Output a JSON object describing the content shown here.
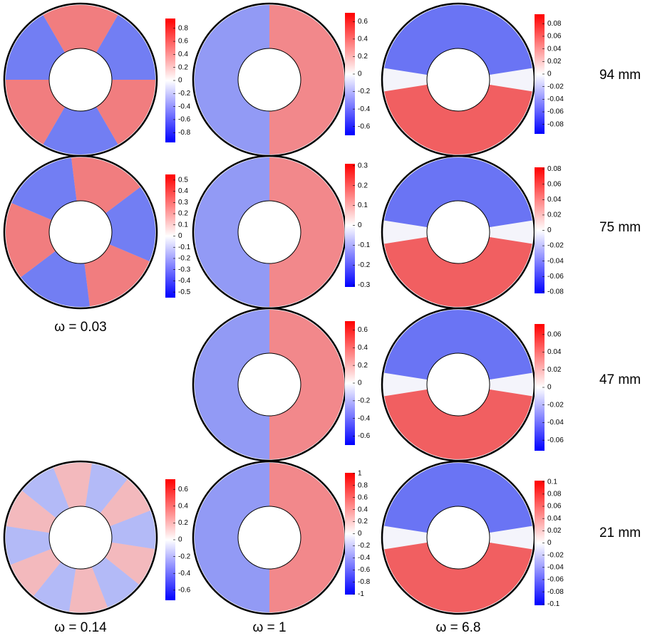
{
  "column_labels": [
    "ω = 0.14",
    "ω = 1",
    "ω = 6.8"
  ],
  "rows": [
    {
      "label": "94 mm",
      "panels": [
        {
          "ylim": [
            -0.95,
            0.95
          ],
          "yticks": [
            0.8,
            0.6,
            0.4,
            0.2,
            0,
            -0.2,
            -0.4,
            -0.6,
            -0.8
          ]
        },
        {
          "ylim": [
            -0.7,
            0.7
          ],
          "yticks": [
            0.6,
            0.4,
            0.2,
            0,
            -0.2,
            -0.4,
            -0.6
          ]
        },
        {
          "ylim": [
            -0.095,
            0.095
          ],
          "yticks": [
            0.08,
            0.06,
            0.04,
            0.02,
            0,
            -0.02,
            -0.04,
            -0.06,
            -0.08
          ]
        }
      ]
    },
    {
      "label": "75 mm",
      "panels": [
        {
          "caption": "ω = 0.03",
          "ylim": [
            -0.55,
            0.55
          ],
          "yticks": [
            0.5,
            0.4,
            0.3,
            0.2,
            0.1,
            0,
            -0.1,
            -0.2,
            -0.3,
            -0.4,
            -0.5
          ]
        },
        {
          "ylim": [
            -0.31,
            0.31
          ],
          "yticks": [
            0.3,
            0.2,
            0.1,
            0,
            -0.1,
            -0.2,
            -0.3
          ]
        },
        {
          "ylim": [
            -0.082,
            0.082
          ],
          "yticks": [
            0.08,
            0.06,
            0.04,
            0.02,
            0,
            -0.02,
            -0.04,
            -0.06,
            -0.08
          ]
        }
      ]
    },
    {
      "label": "47 mm",
      "panels": [
        null,
        {
          "ylim": [
            -0.7,
            0.7
          ],
          "yticks": [
            0.6,
            0.4,
            0.2,
            0,
            -0.2,
            -0.4,
            -0.6
          ]
        },
        {
          "ylim": [
            -0.072,
            0.072
          ],
          "yticks": [
            0.06,
            0.04,
            0.02,
            0,
            -0.02,
            -0.04,
            -0.06
          ]
        }
      ]
    },
    {
      "label": "21 mm",
      "panels": [
        {
          "ylim": [
            -0.72,
            0.72
          ],
          "yticks": [
            0.6,
            0.4,
            0.2,
            0,
            -0.2,
            -0.4,
            -0.6
          ]
        },
        {
          "ylim": [
            -1.01,
            1.01
          ],
          "yticks": [
            1,
            0.8,
            0.6,
            0.4,
            0.2,
            0,
            -0.2,
            -0.4,
            -0.6,
            -0.8,
            -1
          ]
        },
        {
          "ylim": [
            -0.102,
            0.102
          ],
          "yticks": [
            0.1,
            0.08,
            0.06,
            0.04,
            0.02,
            0,
            -0.02,
            -0.04,
            -0.06,
            -0.08,
            -0.1
          ]
        }
      ]
    }
  ]
}
